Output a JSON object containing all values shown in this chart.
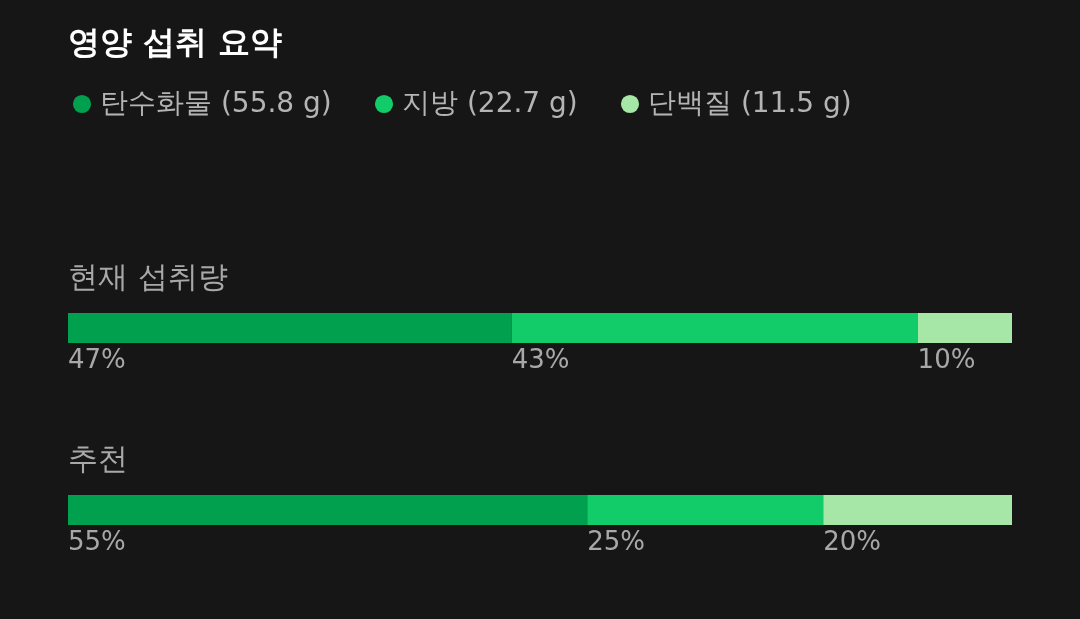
{
  "chart_data": {
    "type": "bar",
    "title": "영양 섭취 요약",
    "orientation": "horizontal",
    "stacked": true,
    "legend": "top left",
    "categories": [
      "현재 섭취량",
      "추천"
    ],
    "series": [
      {
        "name": "탄수화물 (55.8 g)",
        "color": "#00a04e",
        "values": [
          47,
          55
        ],
        "value_labels": [
          "47%",
          "55%"
        ]
      },
      {
        "name": "지방 (22.7 g)",
        "color": "#12cc6a",
        "values": [
          43,
          25
        ],
        "value_labels": [
          "43%",
          "25%"
        ]
      },
      {
        "name": "단백질 (11.5 g)",
        "color": "#a6e6a6",
        "values": [
          10,
          20
        ],
        "value_labels": [
          "10%",
          "20%"
        ]
      }
    ]
  }
}
